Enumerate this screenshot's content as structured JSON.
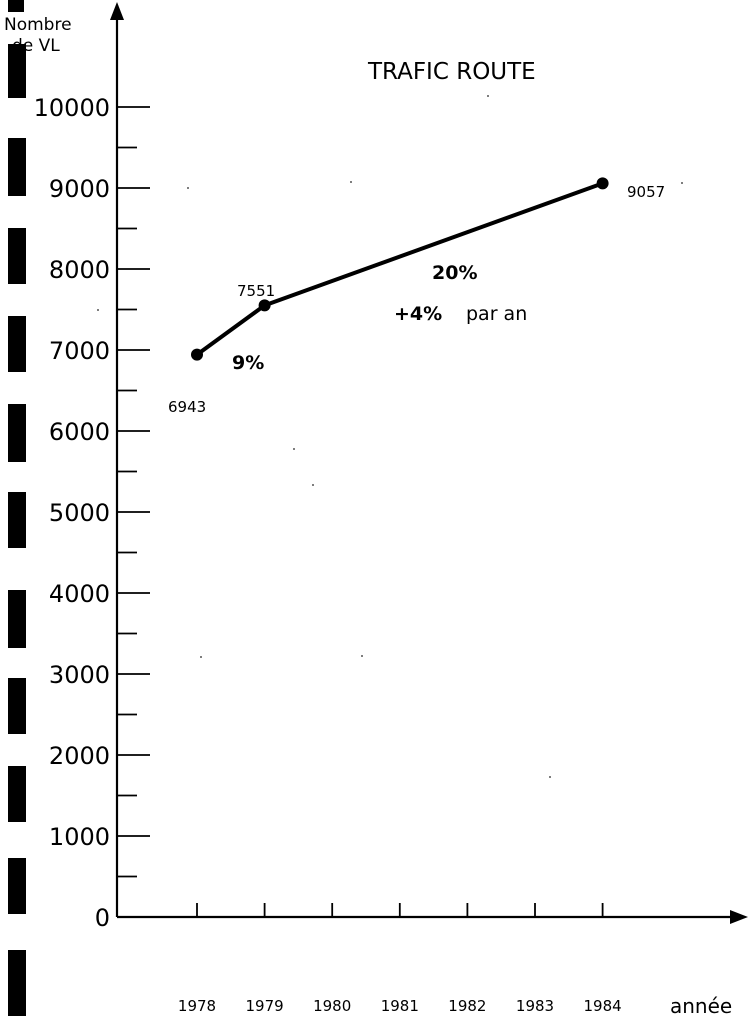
{
  "chart_data": {
    "type": "line",
    "title": "TRAFIC ROUTE",
    "ylabel": [
      "Nombre",
      "de VL"
    ],
    "xlabel": "année",
    "x": [
      1978,
      1979,
      1984
    ],
    "series": [
      {
        "values": [
          6943,
          7551,
          9057
        ]
      }
    ],
    "value_labels": [
      "6943",
      "7551",
      "9057"
    ],
    "xticks": [
      "1978",
      "1979",
      "1980",
      "1981",
      "1982",
      "1983",
      "1984"
    ],
    "yticks": [
      "0",
      "1000",
      "2000",
      "3000",
      "4000",
      "5000",
      "6000",
      "7000",
      "8000",
      "9000",
      "10000"
    ],
    "xlim": [
      1977.6,
      1984.9
    ],
    "ylim": [
      0,
      10000
    ],
    "grid": false,
    "annotations": [
      {
        "id": "pct-1978-1979",
        "text": "9%"
      },
      {
        "id": "pct-1979-1984",
        "text": "20%"
      },
      {
        "id": "rate-bold",
        "text": "+4%"
      },
      {
        "id": "rate-text",
        "text": "par an"
      }
    ]
  }
}
